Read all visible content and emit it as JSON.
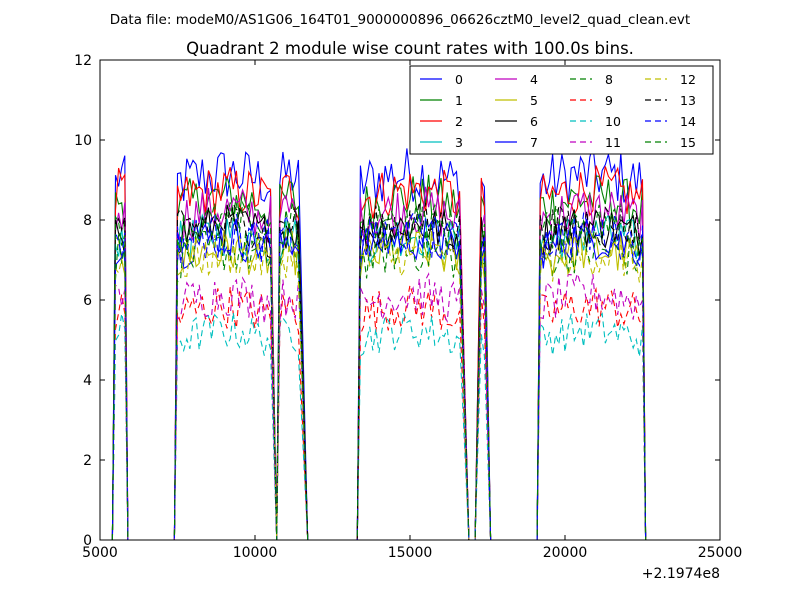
{
  "chart_data": {
    "type": "line",
    "suptitle": "Data file: modeM0/AS1G06_164T01_9000000896_06626cztM0_level2_quad_clean.evt",
    "title": "Quadrant 2 module wise count rates with 100.0s bins.",
    "xlabel": "",
    "ylabel": "",
    "xlim": [
      5000,
      25000
    ],
    "ylim": [
      0,
      12
    ],
    "x_ticks": [
      5000,
      10000,
      15000,
      20000,
      25000
    ],
    "y_ticks": [
      0,
      2,
      4,
      6,
      8,
      10,
      12
    ],
    "x_offset_label": "+2.1974e8",
    "grid": false,
    "legend": {
      "position": "upper-right",
      "columns": 4
    },
    "segments": [
      {
        "x_start": 5500,
        "x_end": 5800,
        "x_drop": 5900,
        "x_rise": 5400,
        "edge": "both"
      },
      {
        "x_start": 7500,
        "x_end": 10550,
        "x_drop": 10700,
        "x_rise": 7400,
        "edge": "both"
      },
      {
        "x_start": 10800,
        "x_end": 11450,
        "x_drop": 11700,
        "x_rise": 10700,
        "edge": "both"
      },
      {
        "x_start": 13400,
        "x_end": 16600,
        "x_drop": 16900,
        "x_rise": 13300,
        "edge": "both"
      },
      {
        "x_start": 17300,
        "x_end": 17400,
        "x_drop": 17600,
        "x_rise": 17100,
        "edge": "both"
      },
      {
        "x_start": 19200,
        "x_end": 22500,
        "x_drop": 22600,
        "x_rise": 19100,
        "edge": "both"
      }
    ],
    "zero_ranges": [
      [
        5900,
        7400
      ],
      [
        11700,
        13300
      ],
      [
        16900,
        17100
      ],
      [
        17600,
        19100
      ]
    ],
    "series": [
      {
        "name": "0",
        "color": "#0000ff",
        "style": "solid",
        "level": 8.9,
        "noise": 0.45
      },
      {
        "name": "1",
        "color": "#008000",
        "style": "solid",
        "level": 8.3,
        "noise": 0.4
      },
      {
        "name": "2",
        "color": "#ff0000",
        "style": "solid",
        "level": 8.5,
        "noise": 0.4
      },
      {
        "name": "3",
        "color": "#00bfbf",
        "style": "solid",
        "level": 7.4,
        "noise": 0.35
      },
      {
        "name": "4",
        "color": "#bf00bf",
        "style": "solid",
        "level": 8.0,
        "noise": 0.4
      },
      {
        "name": "5",
        "color": "#bfbf00",
        "style": "solid",
        "level": 7.0,
        "noise": 0.35
      },
      {
        "name": "6",
        "color": "#000000",
        "style": "solid",
        "level": 7.6,
        "noise": 0.35
      },
      {
        "name": "7",
        "color": "#0000ff",
        "style": "solid",
        "level": 7.3,
        "noise": 0.35
      },
      {
        "name": "8",
        "color": "#008000",
        "style": "dashed",
        "level": 7.0,
        "noise": 0.35
      },
      {
        "name": "9",
        "color": "#ff0000",
        "style": "dashed",
        "level": 5.6,
        "noise": 0.35
      },
      {
        "name": "10",
        "color": "#00bfbf",
        "style": "dashed",
        "level": 5.0,
        "noise": 0.3
      },
      {
        "name": "11",
        "color": "#bf00bf",
        "style": "dashed",
        "level": 5.9,
        "noise": 0.35
      },
      {
        "name": "12",
        "color": "#bfbf00",
        "style": "dashed",
        "level": 6.9,
        "noise": 0.35
      },
      {
        "name": "13",
        "color": "#000000",
        "style": "dashed",
        "level": 7.7,
        "noise": 0.35
      },
      {
        "name": "14",
        "color": "#0000ff",
        "style": "dashed",
        "level": 7.4,
        "noise": 0.35
      },
      {
        "name": "15",
        "color": "#008000",
        "style": "dashed",
        "level": 7.7,
        "noise": 0.35
      }
    ]
  }
}
